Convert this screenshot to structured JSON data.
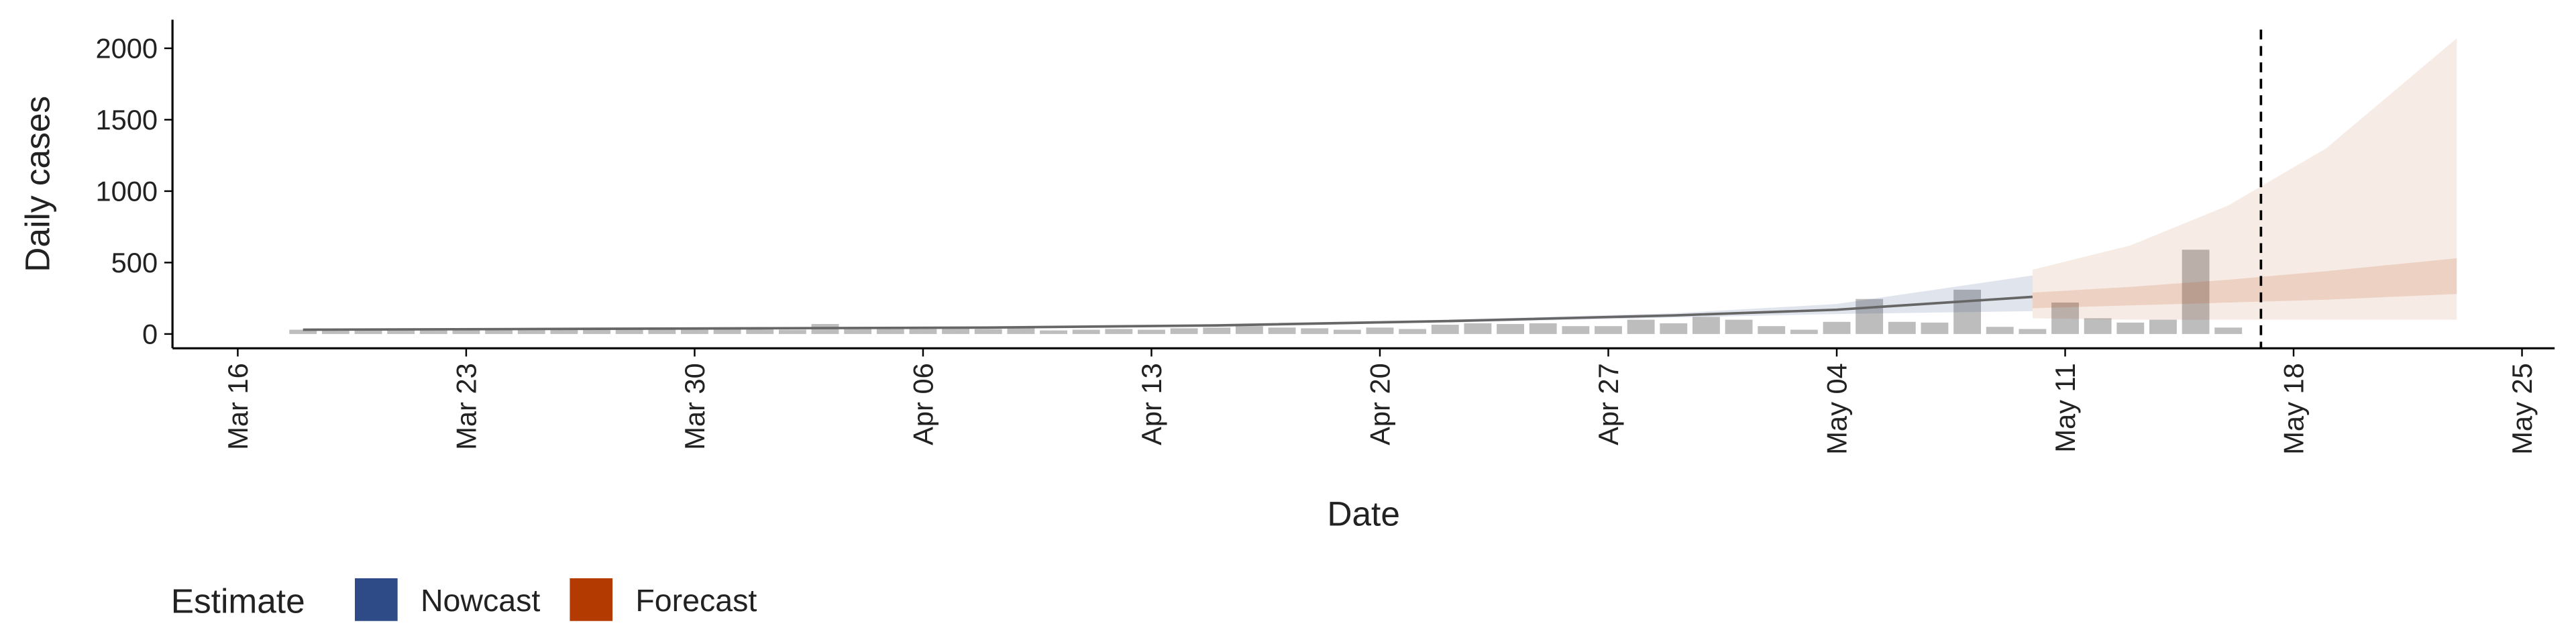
{
  "chart_data": {
    "type": "bar",
    "x_label": "Date",
    "y_label": "Daily cases",
    "legend_title": "Estimate",
    "categories": [
      "Mar 18",
      "Mar 19",
      "Mar 20",
      "Mar 21",
      "Mar 22",
      "Mar 23",
      "Mar 24",
      "Mar 25",
      "Mar 26",
      "Mar 27",
      "Mar 28",
      "Mar 29",
      "Mar 30",
      "Mar 31",
      "Apr 01",
      "Apr 02",
      "Apr 03",
      "Apr 04",
      "Apr 05",
      "Apr 06",
      "Apr 07",
      "Apr 08",
      "Apr 09",
      "Apr 10",
      "Apr 11",
      "Apr 12",
      "Apr 13",
      "Apr 14",
      "Apr 15",
      "Apr 16",
      "Apr 17",
      "Apr 18",
      "Apr 19",
      "Apr 20",
      "Apr 21",
      "Apr 22",
      "Apr 23",
      "Apr 24",
      "Apr 25",
      "Apr 26",
      "Apr 27",
      "Apr 28",
      "Apr 29",
      "Apr 30",
      "May 01",
      "May 02",
      "May 03",
      "May 04",
      "May 05",
      "May 06",
      "May 07",
      "May 08",
      "May 09",
      "May 10",
      "May 11",
      "May 12",
      "May 13",
      "May 14",
      "May 15",
      "May 16"
    ],
    "values": [
      30,
      30,
      35,
      30,
      30,
      35,
      30,
      40,
      35,
      30,
      35,
      35,
      30,
      40,
      35,
      30,
      70,
      35,
      40,
      35,
      40,
      35,
      45,
      25,
      30,
      35,
      30,
      40,
      45,
      55,
      45,
      40,
      30,
      45,
      35,
      65,
      75,
      70,
      75,
      55,
      55,
      100,
      75,
      120,
      100,
      55,
      30,
      85,
      245,
      85,
      80,
      310,
      50,
      35,
      220,
      110,
      80,
      100,
      590,
      45
    ],
    "color": "#bdbdbd",
    "xlim": [
      "Mar 14",
      "May 26"
    ],
    "xticks": [
      "Mar 16",
      "Mar 23",
      "Mar 30",
      "Apr 06",
      "Apr 13",
      "Apr 20",
      "Apr 27",
      "May 04",
      "May 11",
      "May 18",
      "May 25"
    ],
    "ylim": [
      -100,
      2200
    ],
    "yticks": [
      0,
      500,
      1000,
      1500,
      2000
    ],
    "vline": "May 17",
    "series": [
      {
        "name": "Nowcast",
        "color": "#2e4a87",
        "x": [
          "Mar 18",
          "Mar 25",
          "Apr 01",
          "Apr 08",
          "Apr 15",
          "Apr 22",
          "Apr 29",
          "May 04",
          "May 10"
        ],
        "median": [
          30,
          35,
          40,
          45,
          60,
          90,
          130,
          170,
          260
        ],
        "lower": [
          25,
          30,
          35,
          40,
          55,
          80,
          115,
          140,
          160
        ],
        "upper": [
          35,
          40,
          45,
          55,
          70,
          100,
          145,
          210,
          410
        ]
      },
      {
        "name": "Forecast",
        "color": "#b33a00",
        "x": [
          "May 10",
          "May 13",
          "May 16",
          "May 19",
          "May 23"
        ],
        "lower": [
          110,
          100,
          100,
          100,
          100
        ],
        "upper": [
          450,
          620,
          900,
          1300,
          2070
        ],
        "inner_lower": [
          180,
          200,
          220,
          240,
          280
        ],
        "inner_upper": [
          290,
          330,
          380,
          440,
          530
        ]
      }
    ]
  }
}
